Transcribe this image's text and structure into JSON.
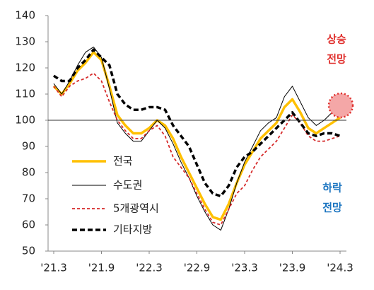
{
  "chart_data": {
    "type": "line",
    "categories": [
      "'21.3",
      null,
      null,
      null,
      null,
      null,
      "'21.9",
      null,
      null,
      null,
      null,
      null,
      "'22.3",
      null,
      null,
      null,
      null,
      null,
      "'22.9",
      null,
      null,
      null,
      null,
      null,
      "'23.3",
      null,
      null,
      null,
      null,
      null,
      "'23.9",
      null,
      null,
      null,
      null,
      null,
      "'24.3"
    ],
    "series": [
      {
        "name": "전국",
        "color": "#ffc000",
        "values": [
          113,
          110,
          114,
          119,
          122,
          126,
          123,
          113,
          102,
          98,
          95,
          95,
          97,
          100,
          98,
          93,
          86,
          80,
          74,
          68,
          63,
          62,
          68,
          76,
          83,
          88,
          93,
          96,
          99,
          105,
          108,
          103,
          97,
          95,
          97,
          99,
          101
        ]
      },
      {
        "name": "수도권",
        "color": "#000000",
        "values": [
          114,
          110,
          115,
          121,
          126,
          128,
          124,
          112,
          99,
          95,
          92,
          92,
          96,
          100,
          97,
          91,
          84,
          78,
          71,
          65,
          60,
          58,
          66,
          76,
          84,
          90,
          96,
          99,
          101,
          109,
          113,
          107,
          101,
          98,
          100,
          103,
          106
        ]
      },
      {
        "name": "5개광역시",
        "color": "#d62a2a",
        "values": [
          113,
          109,
          113,
          115,
          116,
          118,
          115,
          107,
          100,
          96,
          93,
          93,
          96,
          98,
          94,
          86,
          82,
          78,
          72,
          66,
          61,
          60,
          66,
          72,
          75,
          81,
          86,
          89,
          92,
          97,
          102,
          99,
          94,
          92,
          92,
          93,
          94
        ]
      },
      {
        "name": "기타지방",
        "color": "#000000",
        "values": [
          117,
          115,
          115,
          120,
          123,
          127,
          124,
          121,
          110,
          106,
          104,
          104,
          105,
          105,
          104,
          98,
          94,
          90,
          83,
          76,
          72,
          71,
          75,
          82,
          86,
          88,
          91,
          94,
          97,
          100,
          103,
          99,
          95,
          94,
          95,
          95,
          94
        ]
      }
    ],
    "ylim": [
      50,
      140
    ],
    "yticks": [
      50,
      60,
      70,
      80,
      90,
      100,
      110,
      120,
      130,
      140
    ],
    "reference_line": 100,
    "annotations": [
      {
        "lines": [
          "상승",
          "전망"
        ],
        "color": "#e0302d"
      },
      {
        "lines": [
          "하락",
          "전망"
        ],
        "color": "#1a74c0"
      }
    ]
  }
}
